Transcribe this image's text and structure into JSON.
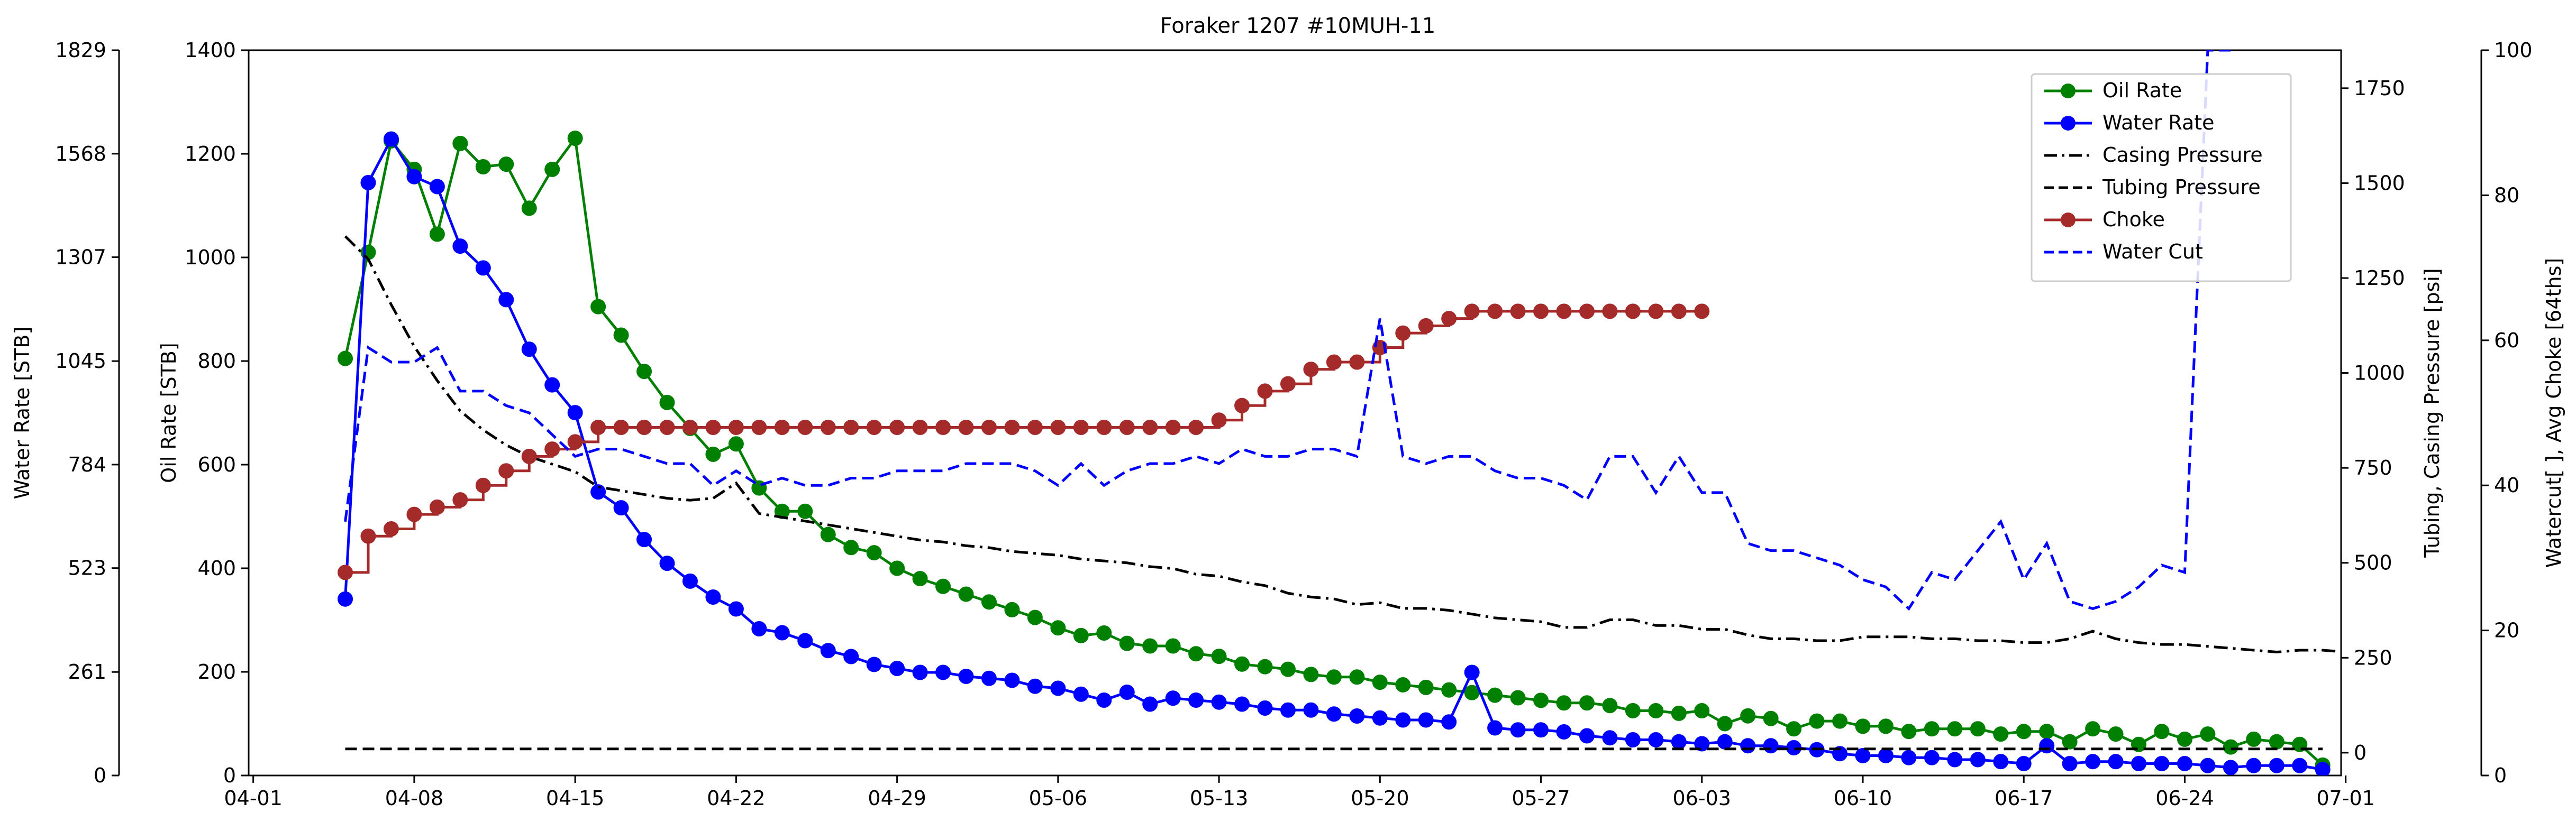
{
  "chart_data": {
    "type": "line",
    "title": "Foraker 1207 #10MUH-11",
    "x_ticks": [
      "04-01",
      "04-08",
      "04-15",
      "04-22",
      "04-29",
      "05-06",
      "05-13",
      "05-20",
      "05-27",
      "06-03",
      "06-10",
      "06-17",
      "06-24",
      "07-01"
    ],
    "x_tick_days": [
      0,
      7,
      14,
      21,
      28,
      35,
      42,
      49,
      56,
      63,
      70,
      77,
      84,
      91
    ],
    "x_range_days": [
      -0.2,
      90.8
    ],
    "day_labels_reference": "04-01",
    "axes": {
      "water_rate": {
        "label": "Water Rate [STB]",
        "range": [
          0,
          1829
        ],
        "ticks": [
          0,
          261,
          523,
          784,
          1045,
          1307,
          1568,
          1829
        ]
      },
      "oil_rate": {
        "label": "Oil Rate [STB]",
        "range": [
          0,
          1400
        ],
        "ticks": [
          0,
          200,
          400,
          600,
          800,
          1000,
          1200,
          1400
        ]
      },
      "pressure": {
        "label": "Tubing, Casing Pressure [psi]",
        "range": [
          -60,
          1850
        ],
        "ticks": [
          0,
          250,
          500,
          750,
          1000,
          1250,
          1500,
          1750
        ]
      },
      "watercut_choke": {
        "label": "Watercut[ ], Avg Choke [64ths]",
        "range": [
          0,
          100
        ],
        "ticks": [
          0,
          20,
          40,
          60,
          80,
          100
        ]
      }
    },
    "series": [
      {
        "name": "Oil Rate",
        "axis": "oil_rate",
        "color": "#008000",
        "style": "solid-markers",
        "x_start_day": 4,
        "x_step": 1,
        "values": [
          805,
          1010,
          1225,
          1170,
          1045,
          1220,
          1175,
          1180,
          1095,
          1170,
          1230,
          905,
          850,
          780,
          720,
          670,
          620,
          640,
          555,
          510,
          510,
          465,
          440,
          430,
          400,
          380,
          365,
          350,
          335,
          320,
          305,
          285,
          270,
          275,
          255,
          250,
          250,
          235,
          230,
          215,
          210,
          205,
          195,
          190,
          190,
          180,
          175,
          170,
          165,
          160,
          155,
          150,
          145,
          140,
          140,
          135,
          125,
          125,
          120,
          125,
          100,
          115,
          110,
          90,
          105,
          105,
          95,
          95,
          85,
          90,
          90,
          90,
          80,
          85,
          85,
          65,
          90,
          80,
          60,
          85,
          70,
          80,
          55,
          70,
          65,
          60,
          20
        ]
      },
      {
        "name": "Water Rate",
        "axis": "water_rate",
        "color": "#0000ff",
        "style": "solid-markers",
        "x_start_day": 4,
        "x_step": 1,
        "values": [
          445,
          1495,
          1605,
          1510,
          1485,
          1335,
          1280,
          1200,
          1075,
          985,
          915,
          715,
          675,
          595,
          535,
          490,
          450,
          420,
          370,
          360,
          340,
          315,
          300,
          280,
          270,
          260,
          260,
          250,
          245,
          240,
          225,
          220,
          205,
          190,
          210,
          180,
          195,
          190,
          185,
          180,
          170,
          165,
          165,
          155,
          150,
          145,
          140,
          140,
          135,
          260,
          120,
          115,
          115,
          110,
          100,
          95,
          90,
          90,
          85,
          80,
          85,
          75,
          75,
          70,
          65,
          55,
          50,
          50,
          45,
          45,
          40,
          40,
          35,
          30,
          75,
          30,
          35,
          35,
          30,
          30,
          30,
          25,
          20,
          25,
          25,
          25,
          15
        ]
      },
      {
        "name": "Casing Pressure",
        "axis": "pressure",
        "color": "#000000",
        "style": "dashdot",
        "x_start_day": 4,
        "x_step": 1,
        "values": [
          1360,
          1300,
          1180,
          1070,
          980,
          900,
          850,
          810,
          780,
          760,
          740,
          700,
          690,
          680,
          670,
          665,
          670,
          710,
          630,
          620,
          610,
          600,
          590,
          580,
          570,
          560,
          555,
          545,
          540,
          530,
          525,
          520,
          510,
          505,
          500,
          490,
          485,
          470,
          465,
          450,
          440,
          420,
          410,
          405,
          390,
          395,
          380,
          380,
          375,
          365,
          355,
          350,
          345,
          330,
          330,
          350,
          350,
          335,
          335,
          325,
          325,
          310,
          300,
          300,
          295,
          295,
          305,
          305,
          305,
          300,
          300,
          295,
          295,
          290,
          290,
          300,
          320,
          300,
          290,
          285,
          285,
          280,
          275,
          270,
          265,
          270,
          270,
          265,
          260,
          255,
          250
        ]
      },
      {
        "name": "Tubing Pressure",
        "axis": "pressure",
        "color": "#000000",
        "style": "dashed",
        "x_start_day": 4,
        "x_step": 1,
        "values": [
          10,
          10,
          10,
          10,
          10,
          10,
          10,
          10,
          10,
          10,
          10,
          10,
          10,
          10,
          10,
          10,
          10,
          10,
          10,
          10,
          10,
          10,
          10,
          10,
          10,
          10,
          10,
          10,
          10,
          10,
          10,
          10,
          10,
          10,
          10,
          10,
          10,
          10,
          10,
          10,
          10,
          10,
          10,
          10,
          10,
          10,
          10,
          10,
          10,
          10,
          10,
          10,
          10,
          10,
          10,
          10,
          10,
          10,
          10,
          10,
          10,
          10,
          10,
          10,
          10,
          10,
          10,
          10,
          10,
          10,
          10,
          10,
          10,
          10,
          10,
          10,
          10,
          10,
          10,
          10,
          10,
          10,
          10,
          10,
          10,
          10,
          10
        ]
      },
      {
        "name": "Choke",
        "axis": "watercut_choke",
        "color": "#a52a2a",
        "style": "steps-markers",
        "x_start_day": 4,
        "x_step": 1,
        "values": [
          28,
          33,
          34,
          36,
          37,
          38,
          40,
          42,
          44,
          45,
          46,
          48,
          48,
          48,
          48,
          48,
          48,
          48,
          48,
          48,
          48,
          48,
          48,
          48,
          48,
          48,
          48,
          48,
          48,
          48,
          48,
          48,
          48,
          48,
          48,
          48,
          48,
          48,
          49,
          51,
          53,
          54,
          56,
          57,
          57,
          59,
          61,
          62,
          63,
          64,
          64,
          64,
          64,
          64,
          64,
          64,
          64,
          64,
          64,
          64
        ]
      },
      {
        "name": "Water Cut",
        "axis": "watercut_choke",
        "color": "#0000ff",
        "style": "dashed",
        "x_start_day": 4,
        "x_step": 1,
        "values": [
          35,
          59,
          57,
          57,
          59,
          53,
          53,
          51,
          50,
          47,
          44,
          45,
          45,
          44,
          43,
          43,
          40,
          42,
          40,
          41,
          40,
          40,
          41,
          41,
          42,
          42,
          42,
          43,
          43,
          43,
          42,
          40,
          43,
          40,
          42,
          43,
          43,
          44,
          43,
          45,
          44,
          44,
          45,
          45,
          44,
          63,
          44,
          43,
          44,
          44,
          42,
          41,
          41,
          40,
          38,
          44,
          44,
          39,
          44,
          39,
          39,
          32,
          31,
          31,
          30,
          29,
          27,
          26,
          23,
          28,
          27,
          31,
          35,
          27,
          32,
          24,
          23,
          24,
          26,
          29,
          28,
          100,
          100
        ]
      }
    ],
    "legend": {
      "position": "upper-right-inside",
      "entries": [
        "Oil Rate",
        "Water Rate",
        "Casing Pressure",
        "Tubing Pressure",
        "Choke",
        "Water Cut"
      ]
    }
  }
}
